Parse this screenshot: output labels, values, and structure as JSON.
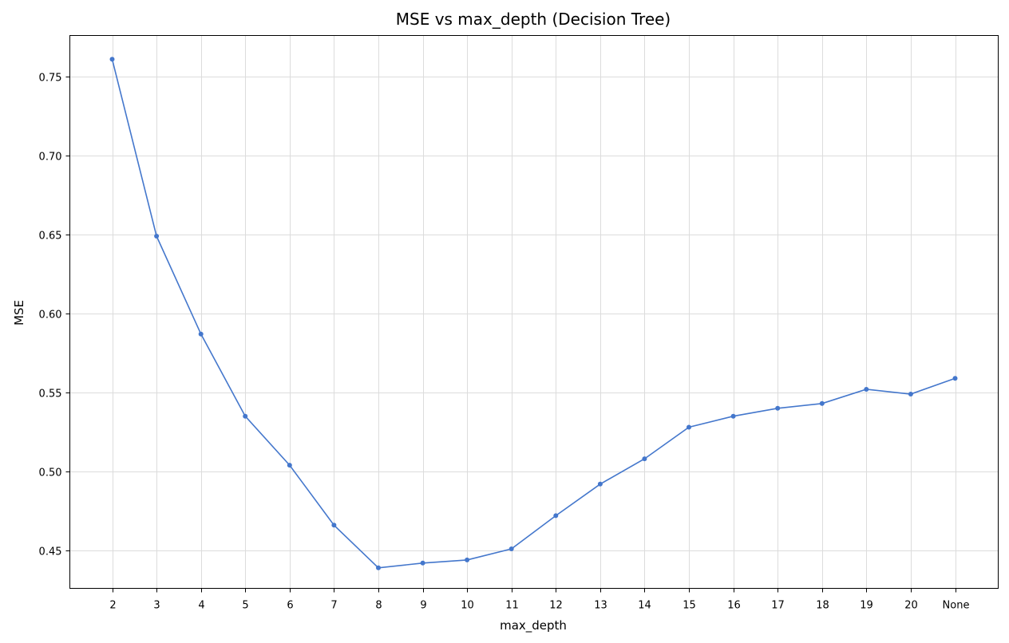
{
  "chart_data": {
    "type": "line",
    "title": "MSE vs max_depth (Decision Tree)",
    "xlabel": "max_depth",
    "ylabel": "MSE",
    "categories": [
      "2",
      "3",
      "4",
      "5",
      "6",
      "7",
      "8",
      "9",
      "10",
      "11",
      "12",
      "13",
      "14",
      "15",
      "16",
      "17",
      "18",
      "19",
      "20",
      "None"
    ],
    "series": [
      {
        "values": [
          0.761,
          0.649,
          0.587,
          0.535,
          0.504,
          0.466,
          0.439,
          0.442,
          0.444,
          0.451,
          0.472,
          0.492,
          0.508,
          0.528,
          0.535,
          0.54,
          0.543,
          0.552,
          0.549,
          0.559
        ],
        "color": "#4477cc"
      }
    ],
    "ylim": [
      0.426,
      0.776
    ],
    "yticks": [
      "0.45",
      "0.50",
      "0.55",
      "0.60",
      "0.65",
      "0.70",
      "0.75"
    ],
    "grid": true,
    "marker": "circle"
  }
}
